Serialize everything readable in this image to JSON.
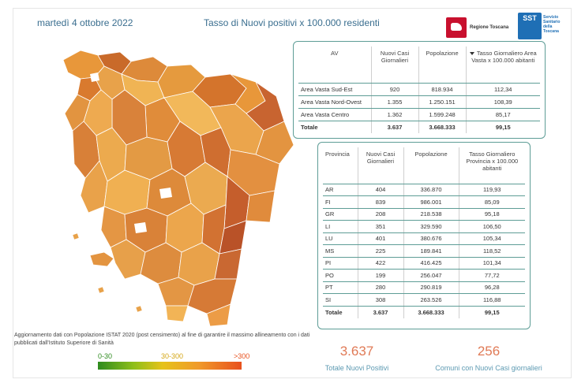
{
  "header": {
    "date": "martedì 4 ottobre 2022",
    "title": "Tasso di Nuovi positivi x 100.000 residenti"
  },
  "logos": {
    "regione": "Regione Toscana",
    "sst_badge": "SST",
    "sst_text_1": "Servizio",
    "sst_text_2": "Sanitario",
    "sst_text_3": "della",
    "sst_text_4": "Toscana"
  },
  "area_vasta_table": {
    "headers": [
      "AV",
      "Nuovi Casi Giornalieri",
      "Popolazione",
      "Tasso Giornaliero Area Vasta x 100.000 abitanti"
    ],
    "rows": [
      {
        "name": "Area Vasta Sud-Est",
        "casi": "920",
        "pop": "818.934",
        "tasso": "112,34"
      },
      {
        "name": "Area Vasta Nord-Ovest",
        "casi": "1.355",
        "pop": "1.250.151",
        "tasso": "108,39"
      },
      {
        "name": "Area Vasta Centro",
        "casi": "1.362",
        "pop": "1.599.248",
        "tasso": "85,17"
      }
    ],
    "total": {
      "name": "Totale",
      "casi": "3.637",
      "pop": "3.668.333",
      "tasso": "99,15"
    }
  },
  "provincia_table": {
    "headers": [
      "Provincia",
      "Nuovi Casi Giornalieri",
      "Popolazione",
      "Tasso Giornaliero Provincia x 100.000 abitanti"
    ],
    "rows": [
      {
        "name": "AR",
        "casi": "404",
        "pop": "336.870",
        "tasso": "119,93"
      },
      {
        "name": "FI",
        "casi": "839",
        "pop": "986.001",
        "tasso": "85,09"
      },
      {
        "name": "GR",
        "casi": "208",
        "pop": "218.538",
        "tasso": "95,18"
      },
      {
        "name": "LI",
        "casi": "351",
        "pop": "329.590",
        "tasso": "106,50"
      },
      {
        "name": "LU",
        "casi": "401",
        "pop": "380.676",
        "tasso": "105,34"
      },
      {
        "name": "MS",
        "casi": "225",
        "pop": "189.841",
        "tasso": "118,52"
      },
      {
        "name": "PI",
        "casi": "422",
        "pop": "416.425",
        "tasso": "101,34"
      },
      {
        "name": "PO",
        "casi": "199",
        "pop": "256.047",
        "tasso": "77,72"
      },
      {
        "name": "PT",
        "casi": "280",
        "pop": "290.819",
        "tasso": "96,28"
      },
      {
        "name": "SI",
        "casi": "308",
        "pop": "263.526",
        "tasso": "116,88"
      }
    ],
    "total": {
      "name": "Totale",
      "casi": "3.637",
      "pop": "3.668.333",
      "tasso": "99,15"
    }
  },
  "footnote": "Aggiornamento dati con Popolazione ISTAT 2020 (post censimento) al fine di garantire il massimo allineamento con i dati pubblicati dall'Istituto Superiore di Sanità",
  "legend": {
    "low": "0-30",
    "mid": "30-300",
    "high": ">300",
    "colors": {
      "low": "#2e8b1f",
      "mid": "#e6c21a",
      "high": "#e8501d"
    }
  },
  "kpis": {
    "positivi_value": "3.637",
    "positivi_label": "Totale Nuovi Positivi",
    "comuni_value": "256",
    "comuni_label": "Comuni con Nuovi Casi giornalieri"
  },
  "colors": {
    "title": "#3a6e8f",
    "kpi_value": "#e07a56",
    "kpi_label": "#5d9ab2",
    "panel_border": "#5e9d96"
  }
}
